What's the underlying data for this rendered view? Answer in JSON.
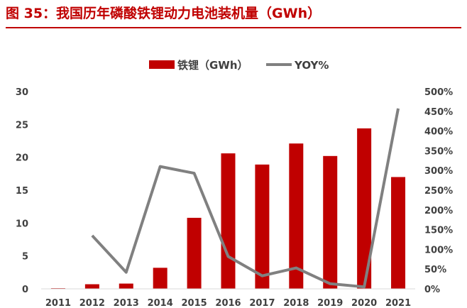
{
  "title": "图 35：我国历年磷酸铁锂动力电池装机量（GWh）",
  "chart_data": {
    "type": "bar",
    "categories": [
      "2011",
      "2012",
      "2013",
      "2014",
      "2015",
      "2016",
      "2017",
      "2018",
      "2019",
      "2020",
      "2021"
    ],
    "series": [
      {
        "name": "铁锂（GWh）",
        "kind": "bar",
        "axis": "left",
        "color": "#c00000",
        "values": [
          0.1,
          0.7,
          0.8,
          3.2,
          10.8,
          20.6,
          18.9,
          22.1,
          20.2,
          24.4,
          17.0
        ]
      },
      {
        "name": "YOY%",
        "kind": "line",
        "axis": "right",
        "color": "#808080",
        "values": [
          null,
          135,
          42,
          310,
          293,
          82,
          33,
          53,
          13,
          5,
          457
        ]
      }
    ],
    "y_left": {
      "range": [
        0,
        30
      ],
      "ticks": [
        "0",
        "5",
        "10",
        "15",
        "20",
        "25",
        "30"
      ]
    },
    "y_right": {
      "range": [
        0,
        500
      ],
      "ticks": [
        "0%",
        "50%",
        "100%",
        "150%",
        "200%",
        "250%",
        "300%",
        "350%",
        "400%",
        "450%",
        "500%"
      ]
    },
    "legend_position": "top-center",
    "grid": false
  }
}
